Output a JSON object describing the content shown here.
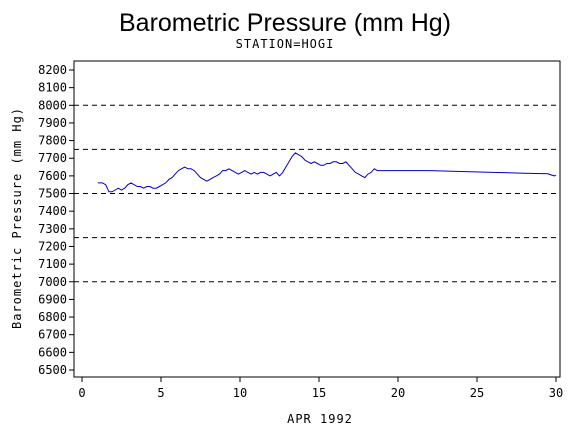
{
  "chart_data": {
    "type": "line",
    "title": "Barometric Pressure (mm Hg)",
    "subtitle": "STATION=HOGI",
    "xlabel": "APR 1992",
    "ylabel": "Barometric Pressure (mm Hg)",
    "xlim": [
      0,
      30
    ],
    "ylim": [
      6500,
      8200
    ],
    "x_ticks": [
      0,
      5,
      10,
      15,
      20,
      25,
      30
    ],
    "y_ticks": [
      6500,
      6600,
      6700,
      6800,
      6900,
      7000,
      7100,
      7200,
      7300,
      7400,
      7500,
      7600,
      7700,
      7800,
      7900,
      8000,
      8100,
      8200
    ],
    "reference_lines": [
      7000,
      7250,
      7500,
      7750,
      8000
    ],
    "line_color": "#0000cc",
    "series": [
      {
        "points": [
          [
            1.0,
            7560
          ],
          [
            1.3,
            7560
          ],
          [
            1.5,
            7550
          ],
          [
            1.7,
            7510
          ],
          [
            1.9,
            7510
          ],
          [
            2.1,
            7520
          ],
          [
            2.3,
            7530
          ],
          [
            2.5,
            7520
          ],
          [
            2.7,
            7530
          ],
          [
            2.9,
            7550
          ],
          [
            3.1,
            7560
          ],
          [
            3.3,
            7550
          ],
          [
            3.5,
            7540
          ],
          [
            3.7,
            7540
          ],
          [
            3.9,
            7530
          ],
          [
            4.1,
            7540
          ],
          [
            4.3,
            7540
          ],
          [
            4.5,
            7530
          ],
          [
            4.7,
            7530
          ],
          [
            4.9,
            7540
          ],
          [
            5.1,
            7550
          ],
          [
            5.3,
            7560
          ],
          [
            5.5,
            7580
          ],
          [
            5.7,
            7590
          ],
          [
            5.9,
            7610
          ],
          [
            6.1,
            7630
          ],
          [
            6.3,
            7640
          ],
          [
            6.5,
            7650
          ],
          [
            6.7,
            7640
          ],
          [
            6.9,
            7640
          ],
          [
            7.1,
            7630
          ],
          [
            7.3,
            7610
          ],
          [
            7.5,
            7590
          ],
          [
            7.7,
            7580
          ],
          [
            7.9,
            7570
          ],
          [
            8.1,
            7580
          ],
          [
            8.3,
            7590
          ],
          [
            8.5,
            7600
          ],
          [
            8.7,
            7610
          ],
          [
            8.9,
            7630
          ],
          [
            9.1,
            7630
          ],
          [
            9.3,
            7640
          ],
          [
            9.5,
            7630
          ],
          [
            9.7,
            7620
          ],
          [
            9.9,
            7610
          ],
          [
            10.1,
            7620
          ],
          [
            10.3,
            7630
          ],
          [
            10.5,
            7620
          ],
          [
            10.7,
            7610
          ],
          [
            10.9,
            7620
          ],
          [
            11.1,
            7610
          ],
          [
            11.3,
            7620
          ],
          [
            11.5,
            7620
          ],
          [
            11.7,
            7610
          ],
          [
            11.9,
            7600
          ],
          [
            12.1,
            7610
          ],
          [
            12.3,
            7620
          ],
          [
            12.5,
            7600
          ],
          [
            12.7,
            7620
          ],
          [
            12.9,
            7650
          ],
          [
            13.1,
            7680
          ],
          [
            13.3,
            7710
          ],
          [
            13.5,
            7730
          ],
          [
            13.7,
            7720
          ],
          [
            13.9,
            7710
          ],
          [
            14.1,
            7690
          ],
          [
            14.3,
            7680
          ],
          [
            14.5,
            7670
          ],
          [
            14.7,
            7680
          ],
          [
            14.9,
            7670
          ],
          [
            15.1,
            7660
          ],
          [
            15.3,
            7660
          ],
          [
            15.5,
            7670
          ],
          [
            15.7,
            7670
          ],
          [
            15.9,
            7680
          ],
          [
            16.1,
            7680
          ],
          [
            16.3,
            7670
          ],
          [
            16.5,
            7670
          ],
          [
            16.7,
            7680
          ],
          [
            16.9,
            7660
          ],
          [
            17.1,
            7640
          ],
          [
            17.3,
            7620
          ],
          [
            17.5,
            7610
          ],
          [
            17.7,
            7600
          ],
          [
            17.9,
            7590
          ],
          [
            18.1,
            7610
          ],
          [
            18.3,
            7620
          ],
          [
            18.5,
            7640
          ],
          [
            18.7,
            7630
          ],
          [
            19.0,
            7630
          ],
          [
            20.0,
            7630
          ],
          [
            22.0,
            7630
          ],
          [
            24.0,
            7625
          ],
          [
            26.0,
            7620
          ],
          [
            28.0,
            7615
          ],
          [
            29.5,
            7612
          ],
          [
            29.7,
            7605
          ],
          [
            29.9,
            7600
          ],
          [
            30.0,
            7605
          ]
        ]
      }
    ]
  }
}
